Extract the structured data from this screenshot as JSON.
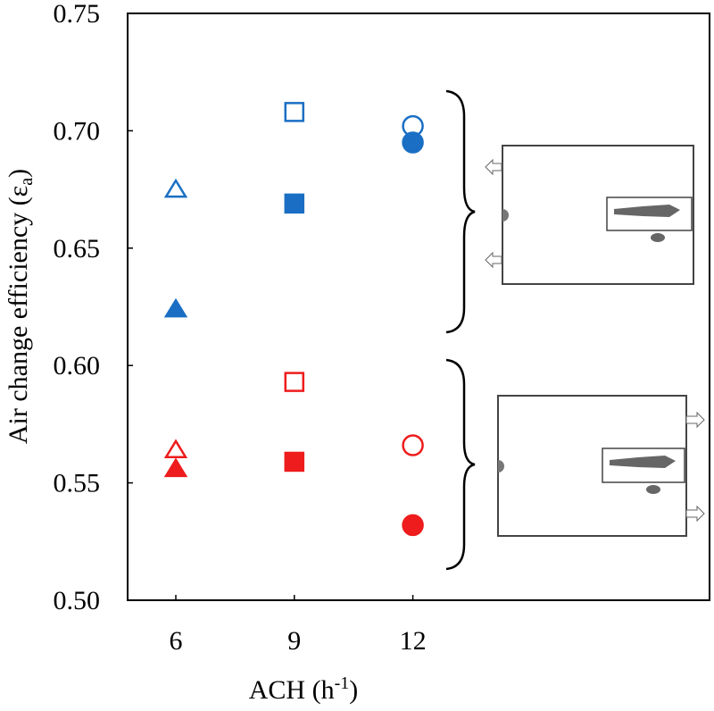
{
  "chart_data": {
    "type": "scatter",
    "ylabel": "Air change efficiency (ε",
    "ylabel_sub": "a",
    "ylabel_end": ")",
    "xlabel": "ACH (h",
    "xlabel_sup": "-1",
    "xlabel_end": ")",
    "xlim": [
      4.78,
      19.51
    ],
    "xticks": [
      6,
      9,
      12
    ],
    "ylim": [
      0.5,
      0.75
    ],
    "yticks": [
      {
        "value": 0.5,
        "label": "0.50"
      },
      {
        "value": 0.55,
        "label": "0.55"
      },
      {
        "value": 0.6,
        "label": "0.60"
      },
      {
        "value": 0.65,
        "label": "0.65"
      },
      {
        "value": 0.7,
        "label": "0.70"
      },
      {
        "value": 0.75,
        "label": "0.75"
      }
    ],
    "markers": [
      "triangle",
      "square",
      "circle"
    ],
    "series": [
      {
        "color": "#1a6fc4",
        "filled": false,
        "x": [
          6,
          9,
          12
        ],
        "values": [
          0.675,
          0.708,
          0.702
        ]
      },
      {
        "color": "#1a6fc4",
        "filled": true,
        "x": [
          6,
          9,
          12
        ],
        "values": [
          0.624,
          0.669,
          0.695
        ]
      },
      {
        "color": "#ee1c1c",
        "filled": false,
        "x": [
          6,
          9,
          12
        ],
        "values": [
          0.564,
          0.593,
          0.566
        ]
      },
      {
        "color": "#ee1c1c",
        "filled": true,
        "x": [
          6,
          9,
          12
        ],
        "values": [
          0.556,
          0.559,
          0.532
        ]
      }
    ]
  }
}
